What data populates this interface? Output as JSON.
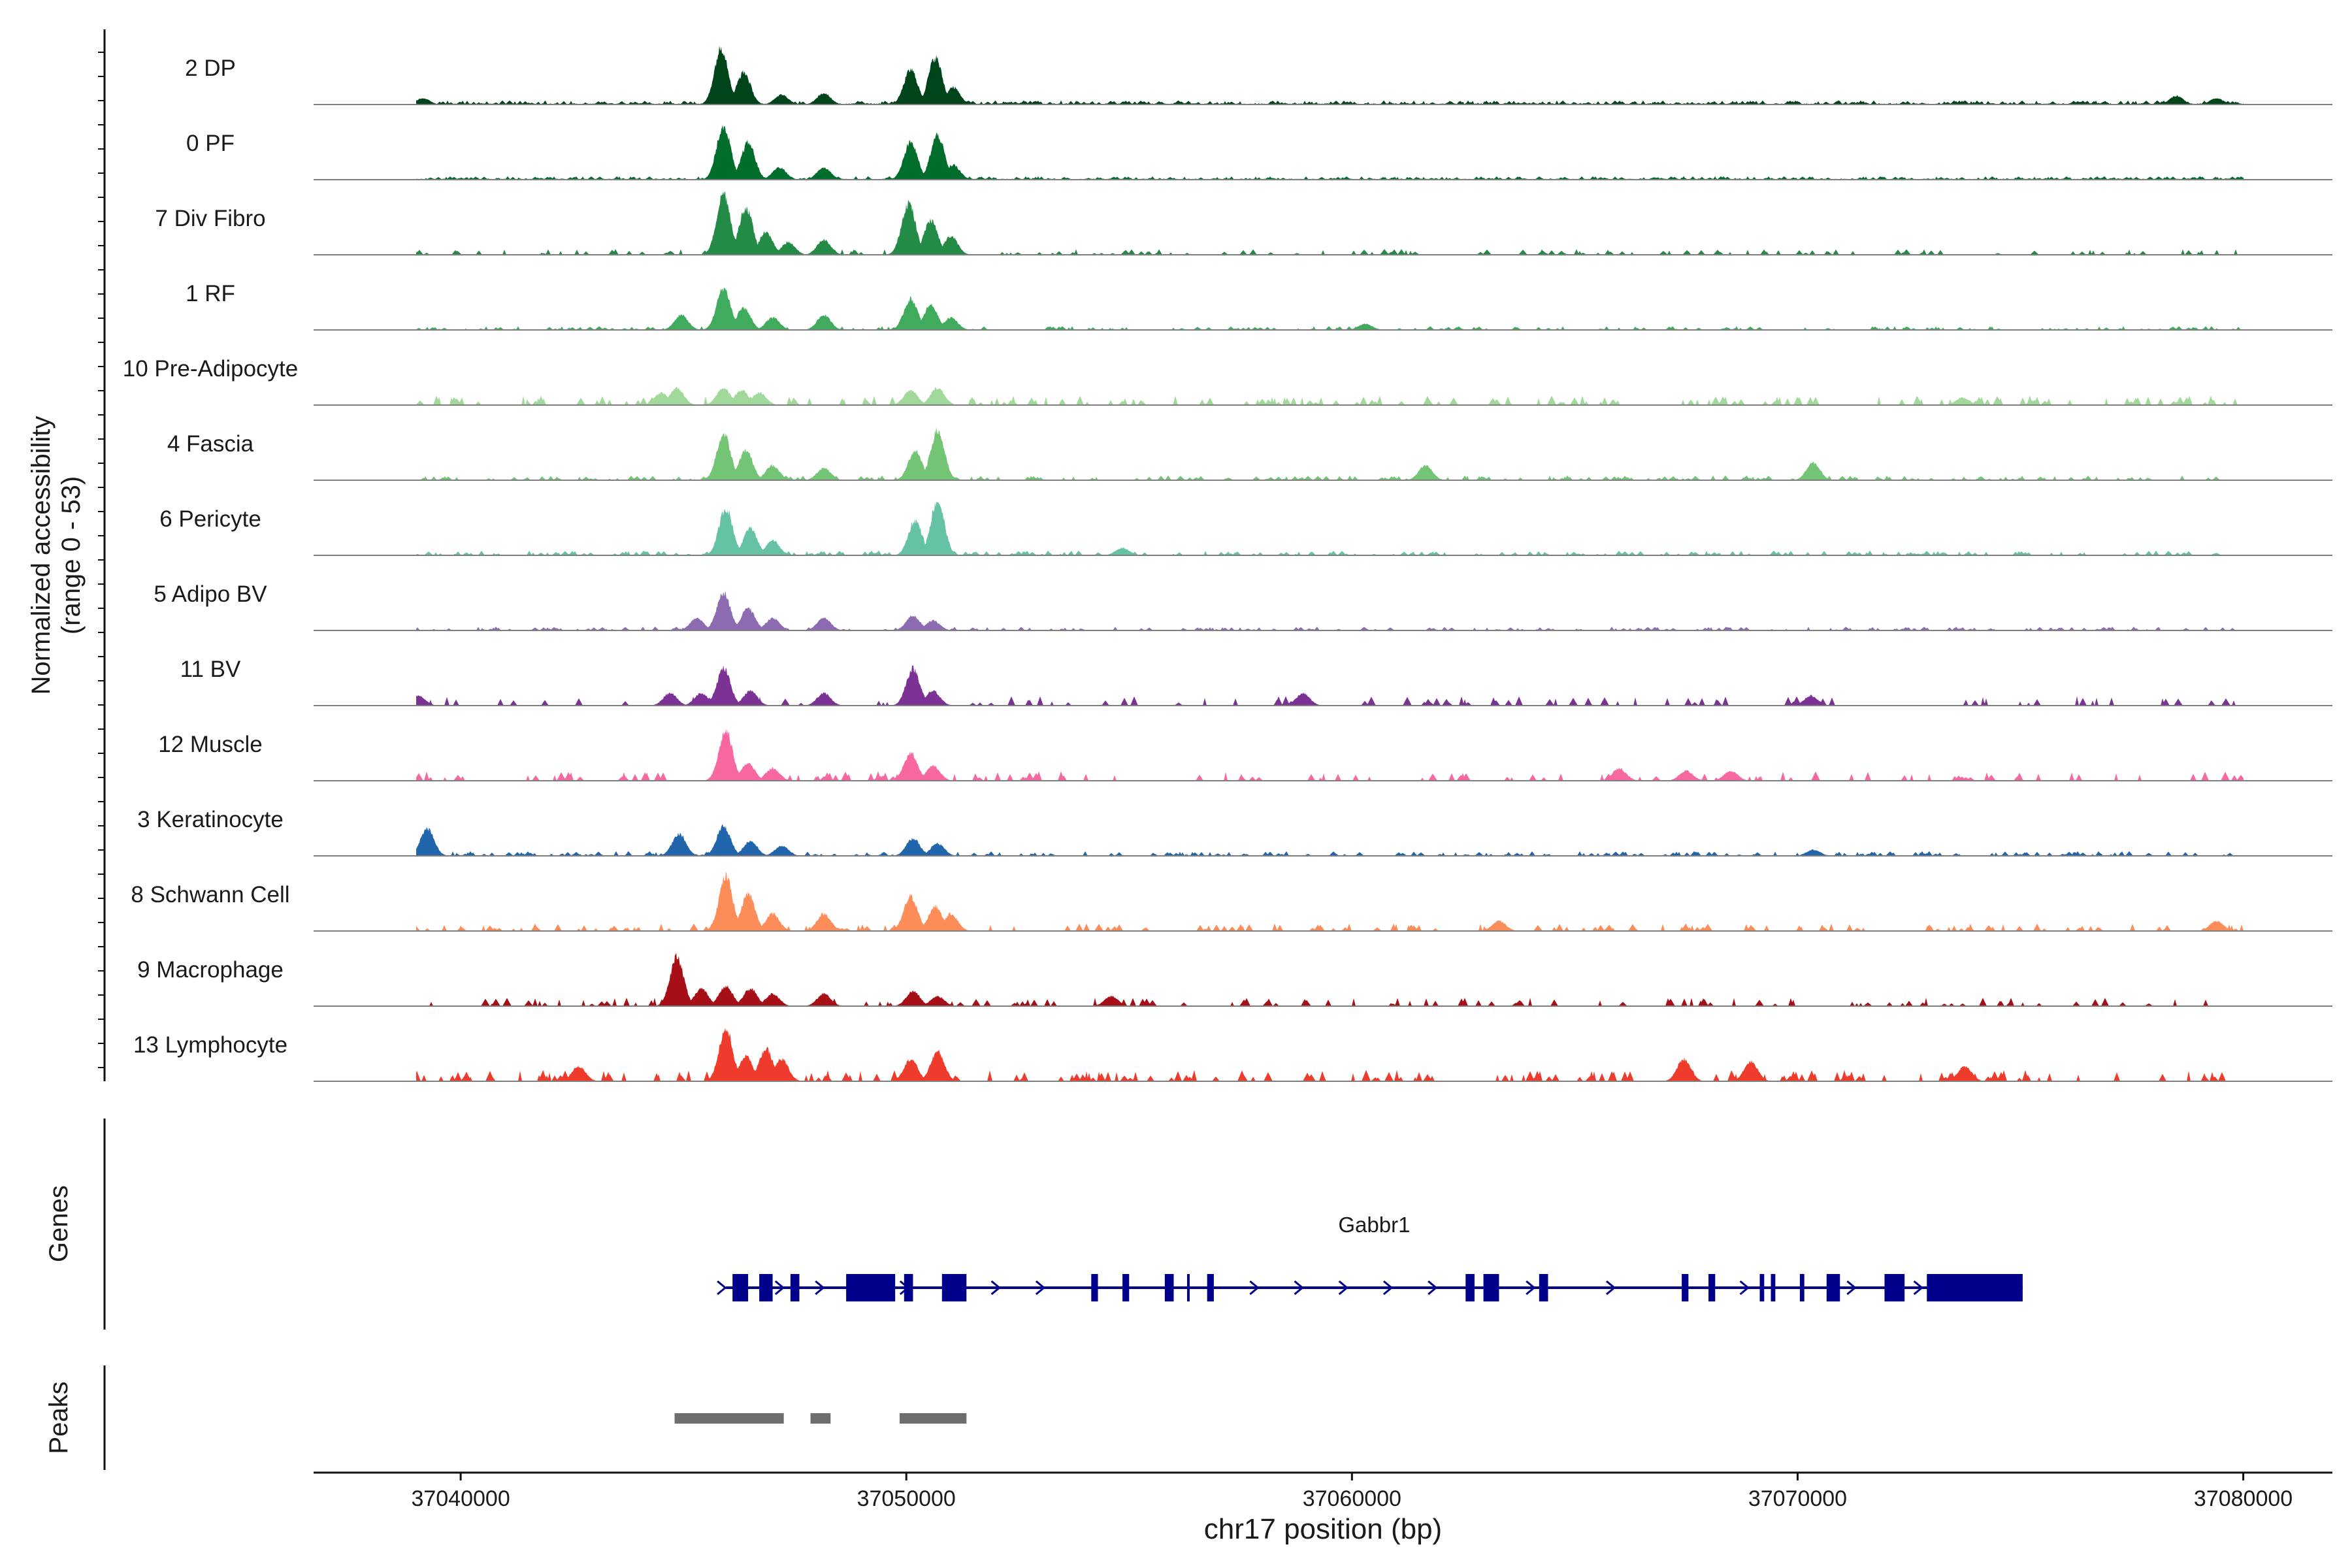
{
  "chart_data": {
    "type": "area",
    "title": "",
    "xlabel": "chr17 position (bp)",
    "ylabel_line1": "Normalized accessibility",
    "ylabel_line2": "(range 0 - 53)",
    "xlim": [
      37036700,
      37082000
    ],
    "ylim": [
      0,
      53
    ],
    "x_ticks": [
      37040000,
      37050000,
      37060000,
      37070000,
      37080000
    ],
    "x_tick_labels": [
      "37040000",
      "37050000",
      "37060000",
      "37070000",
      "37080000"
    ],
    "track_labels": {
      "genes": "Genes",
      "peaks": "Peaks"
    },
    "series": [
      {
        "name": "2 DP",
        "color": "#00441b",
        "peaks": [
          [
            37045850,
            46
          ],
          [
            37046350,
            26
          ],
          [
            37047200,
            8
          ],
          [
            37048150,
            9
          ],
          [
            37050100,
            28
          ],
          [
            37050650,
            38
          ],
          [
            37051050,
            14
          ],
          [
            37039150,
            5
          ],
          [
            37078500,
            7
          ],
          [
            37079400,
            5
          ]
        ],
        "noise": 2.2,
        "noise_density": 0.85,
        "baseline": 1
      },
      {
        "name": "0 PF",
        "color": "#006d2c",
        "peaks": [
          [
            37045900,
            44
          ],
          [
            37046450,
            30
          ],
          [
            37047150,
            10
          ],
          [
            37048150,
            10
          ],
          [
            37050100,
            30
          ],
          [
            37050700,
            36
          ],
          [
            37051050,
            12
          ]
        ],
        "noise": 1.8,
        "noise_density": 0.8,
        "baseline": 0.8
      },
      {
        "name": "7 Div Fibro",
        "color": "#238b45",
        "peaks": [
          [
            37045900,
            50
          ],
          [
            37046400,
            38
          ],
          [
            37046850,
            18
          ],
          [
            37047350,
            10
          ],
          [
            37048150,
            12
          ],
          [
            37050050,
            42
          ],
          [
            37050550,
            28
          ],
          [
            37051000,
            15
          ]
        ],
        "noise": 3,
        "noise_density": 0.3,
        "baseline": 0
      },
      {
        "name": "1 RF",
        "color": "#41ab5d",
        "peaks": [
          [
            37044950,
            12
          ],
          [
            37045900,
            34
          ],
          [
            37046350,
            18
          ],
          [
            37047000,
            10
          ],
          [
            37048150,
            12
          ],
          [
            37050100,
            25
          ],
          [
            37050550,
            20
          ],
          [
            37051000,
            10
          ],
          [
            37060300,
            5
          ]
        ],
        "noise": 2,
        "noise_density": 0.4,
        "baseline": 0.3
      },
      {
        "name": "10 Pre-Adipocyte",
        "color": "#a1d99b",
        "peaks": [
          [
            37044500,
            10
          ],
          [
            37044850,
            14
          ],
          [
            37045900,
            14
          ],
          [
            37046300,
            12
          ],
          [
            37046700,
            10
          ],
          [
            37050100,
            12
          ],
          [
            37050700,
            14
          ],
          [
            37073700,
            6
          ]
        ],
        "noise": 5,
        "noise_density": 0.3,
        "baseline": 0
      },
      {
        "name": "4 Fascia",
        "color": "#74c476",
        "peaks": [
          [
            37045900,
            38
          ],
          [
            37046400,
            24
          ],
          [
            37047000,
            12
          ],
          [
            37048150,
            10
          ],
          [
            37050200,
            24
          ],
          [
            37050700,
            40
          ],
          [
            37061650,
            12
          ],
          [
            37070350,
            14
          ]
        ],
        "noise": 2.5,
        "noise_density": 0.5,
        "baseline": 0.5
      },
      {
        "name": "6 Pericyte",
        "color": "#66c2a4",
        "peaks": [
          [
            37045950,
            38
          ],
          [
            37046500,
            22
          ],
          [
            37047000,
            12
          ],
          [
            37050200,
            28
          ],
          [
            37050700,
            44
          ],
          [
            37054850,
            6
          ]
        ],
        "noise": 2.5,
        "noise_density": 0.5,
        "baseline": 0.5
      },
      {
        "name": "5 Adipo BV",
        "color": "#8c6bb1",
        "peaks": [
          [
            37045300,
            10
          ],
          [
            37045900,
            30
          ],
          [
            37046450,
            18
          ],
          [
            37047000,
            10
          ],
          [
            37048150,
            10
          ],
          [
            37050150,
            12
          ],
          [
            37050600,
            8
          ]
        ],
        "noise": 2,
        "noise_density": 0.45,
        "baseline": 0.5
      },
      {
        "name": "11 BV",
        "color": "#7b3294",
        "peaks": [
          [
            37039050,
            8
          ],
          [
            37044700,
            10
          ],
          [
            37045400,
            10
          ],
          [
            37045900,
            30
          ],
          [
            37046500,
            12
          ],
          [
            37048150,
            10
          ],
          [
            37050150,
            30
          ],
          [
            37050600,
            12
          ],
          [
            37058900,
            10
          ],
          [
            37070300,
            8
          ]
        ],
        "noise": 5,
        "noise_density": 0.2,
        "baseline": 0
      },
      {
        "name": "12 Muscle",
        "color": "#f768a1",
        "peaks": [
          [
            37045950,
            40
          ],
          [
            37046450,
            14
          ],
          [
            37047000,
            10
          ],
          [
            37050100,
            22
          ],
          [
            37050600,
            12
          ],
          [
            37066000,
            10
          ],
          [
            37067500,
            8
          ],
          [
            37068500,
            8
          ]
        ],
        "noise": 5,
        "noise_density": 0.25,
        "baseline": 0
      },
      {
        "name": "3 Keratinocyte",
        "color": "#2166ac",
        "peaks": [
          [
            37039250,
            22
          ],
          [
            37044900,
            18
          ],
          [
            37045900,
            24
          ],
          [
            37046500,
            12
          ],
          [
            37047200,
            8
          ],
          [
            37050150,
            14
          ],
          [
            37050700,
            10
          ],
          [
            37070350,
            5
          ]
        ],
        "noise": 2.5,
        "noise_density": 0.5,
        "baseline": 0.5
      },
      {
        "name": "8 Schwann Cell",
        "color": "#fc8d59",
        "peaks": [
          [
            37045950,
            44
          ],
          [
            37046450,
            30
          ],
          [
            37047000,
            14
          ],
          [
            37048150,
            14
          ],
          [
            37050100,
            28
          ],
          [
            37050650,
            20
          ],
          [
            37051000,
            14
          ],
          [
            37063300,
            8
          ],
          [
            37079400,
            8
          ]
        ],
        "noise": 4,
        "noise_density": 0.3,
        "baseline": 0.3
      },
      {
        "name": "9 Macrophage",
        "color": "#a50f15",
        "peaks": [
          [
            37044850,
            40
          ],
          [
            37045400,
            14
          ],
          [
            37045950,
            16
          ],
          [
            37046500,
            14
          ],
          [
            37047000,
            10
          ],
          [
            37048150,
            10
          ],
          [
            37050150,
            12
          ],
          [
            37050700,
            8
          ],
          [
            37054600,
            8
          ]
        ],
        "noise": 4.5,
        "noise_density": 0.25,
        "baseline": 0
      },
      {
        "name": "13 Lymphocyte",
        "color": "#ef3b2c",
        "peaks": [
          [
            37042650,
            12
          ],
          [
            37045950,
            42
          ],
          [
            37046400,
            20
          ],
          [
            37046850,
            26
          ],
          [
            37047200,
            18
          ],
          [
            37050100,
            18
          ],
          [
            37050700,
            24
          ],
          [
            37067450,
            18
          ],
          [
            37068950,
            16
          ],
          [
            37073750,
            12
          ]
        ],
        "noise": 6,
        "noise_density": 0.3,
        "baseline": 0
      }
    ],
    "genes": [
      {
        "name": "Gabbr1",
        "start": 37045950,
        "end": 37075050,
        "strand": "+",
        "color": "#00008b",
        "exons": [
          [
            37046100,
            37046450
          ],
          [
            37046700,
            37047000
          ],
          [
            37047400,
            37047600
          ],
          [
            37048650,
            37049750
          ],
          [
            37049950,
            37050150
          ],
          [
            37050800,
            37051350
          ],
          [
            37054150,
            37054300
          ],
          [
            37054850,
            37055000
          ],
          [
            37055800,
            37056000
          ],
          [
            37056300,
            37056350
          ],
          [
            37056750,
            37056900
          ],
          [
            37062550,
            37062750
          ],
          [
            37062950,
            37063300
          ],
          [
            37064200,
            37064400
          ],
          [
            37067400,
            37067550
          ],
          [
            37068000,
            37068150
          ],
          [
            37069150,
            37069250
          ],
          [
            37069400,
            37069500
          ],
          [
            37070050,
            37070150
          ],
          [
            37070650,
            37070950
          ],
          [
            37071950,
            37072400
          ],
          [
            37072900,
            37075050
          ]
        ],
        "arrows": [
          37045850,
          37047150,
          37048050,
          37049950,
          37052000,
          37053000,
          37057800,
          37058800,
          37059800,
          37060800,
          37061800,
          37064000,
          37065800,
          37068800,
          37071200,
          37072700
        ]
      }
    ],
    "peaks": [
      [
        37044800,
        37047250
      ],
      [
        37047850,
        37048300
      ],
      [
        37049850,
        37051350
      ]
    ]
  }
}
